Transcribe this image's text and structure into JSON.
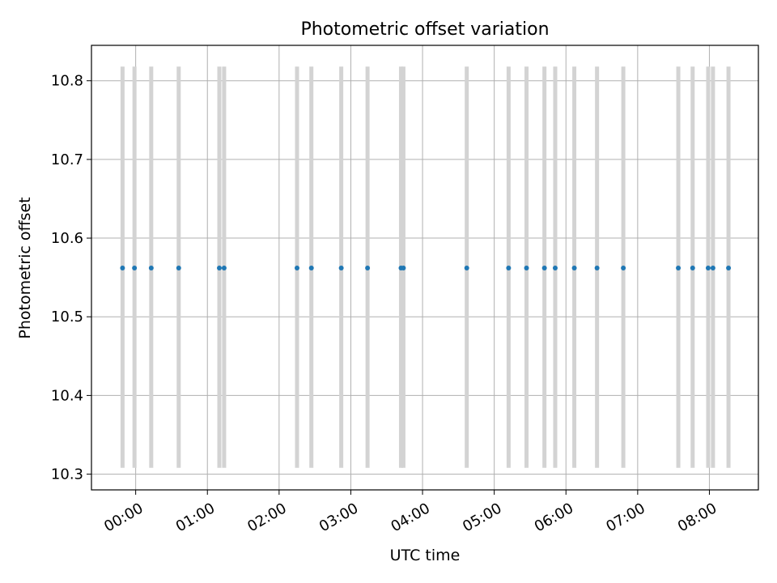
{
  "chart_data": {
    "type": "scatter",
    "title": "Photometric offset variation",
    "xlabel": "UTC time",
    "ylabel": "Photometric offset",
    "xlim": [
      "23:23",
      "08:41"
    ],
    "ylim": [
      10.28,
      10.845
    ],
    "grid": true,
    "x_ticks": [
      "00:00",
      "01:00",
      "02:00",
      "03:00",
      "04:00",
      "05:00",
      "06:00",
      "07:00",
      "08:00"
    ],
    "y_ticks": [
      10.3,
      10.4,
      10.5,
      10.6,
      10.7,
      10.8
    ],
    "series": [
      {
        "color": "#1f77b4",
        "error_bar_color": "#d3d3d3",
        "points": [
          {
            "x": "23:49",
            "y": 10.562,
            "y_low": 10.308,
            "y_high": 10.818
          },
          {
            "x": "23:59",
            "y": 10.562,
            "y_low": 10.308,
            "y_high": 10.818
          },
          {
            "x": "00:13",
            "y": 10.562,
            "y_low": 10.308,
            "y_high": 10.818
          },
          {
            "x": "00:36",
            "y": 10.562,
            "y_low": 10.308,
            "y_high": 10.818
          },
          {
            "x": "01:10",
            "y": 10.562,
            "y_low": 10.308,
            "y_high": 10.818
          },
          {
            "x": "01:14",
            "y": 10.562,
            "y_low": 10.308,
            "y_high": 10.818
          },
          {
            "x": "02:15",
            "y": 10.562,
            "y_low": 10.308,
            "y_high": 10.818
          },
          {
            "x": "02:27",
            "y": 10.562,
            "y_low": 10.308,
            "y_high": 10.818
          },
          {
            "x": "02:52",
            "y": 10.562,
            "y_low": 10.308,
            "y_high": 10.818
          },
          {
            "x": "03:14",
            "y": 10.562,
            "y_low": 10.308,
            "y_high": 10.818
          },
          {
            "x": "03:42",
            "y": 10.562,
            "y_low": 10.308,
            "y_high": 10.818
          },
          {
            "x": "03:44",
            "y": 10.562,
            "y_low": 10.308,
            "y_high": 10.818
          },
          {
            "x": "04:37",
            "y": 10.562,
            "y_low": 10.308,
            "y_high": 10.818
          },
          {
            "x": "05:12",
            "y": 10.562,
            "y_low": 10.308,
            "y_high": 10.818
          },
          {
            "x": "05:27",
            "y": 10.562,
            "y_low": 10.308,
            "y_high": 10.818
          },
          {
            "x": "05:42",
            "y": 10.562,
            "y_low": 10.308,
            "y_high": 10.818
          },
          {
            "x": "05:51",
            "y": 10.562,
            "y_low": 10.308,
            "y_high": 10.818
          },
          {
            "x": "06:07",
            "y": 10.562,
            "y_low": 10.308,
            "y_high": 10.818
          },
          {
            "x": "06:26",
            "y": 10.562,
            "y_low": 10.308,
            "y_high": 10.818
          },
          {
            "x": "06:48",
            "y": 10.562,
            "y_low": 10.308,
            "y_high": 10.818
          },
          {
            "x": "07:34",
            "y": 10.562,
            "y_low": 10.308,
            "y_high": 10.818
          },
          {
            "x": "07:46",
            "y": 10.562,
            "y_low": 10.308,
            "y_high": 10.818
          },
          {
            "x": "07:59",
            "y": 10.562,
            "y_low": 10.308,
            "y_high": 10.818
          },
          {
            "x": "08:03",
            "y": 10.562,
            "y_low": 10.308,
            "y_high": 10.818
          },
          {
            "x": "08:16",
            "y": 10.562,
            "y_low": 10.308,
            "y_high": 10.818
          }
        ]
      }
    ]
  }
}
